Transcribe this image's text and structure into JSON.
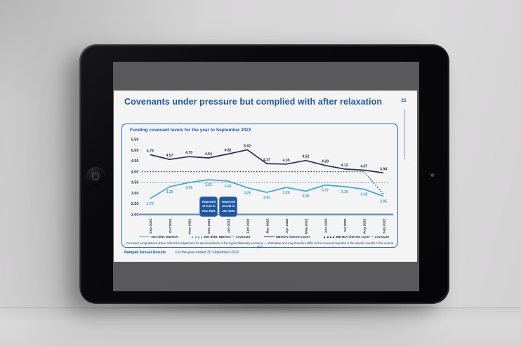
{
  "slide": {
    "title": "Covenants under pressure but complied with after relaxation",
    "page_number": "25",
    "footer": {
      "brand": "Nampak Annual Results",
      "period": "For the year ended 30 September 2022"
    }
  },
  "chart": {
    "title": "Funding covenant levels for the year to September 2022",
    "footnote": "Covenant computations above reflect the adjustment for spot translation of the hyperinflationary economy — Zimbabwe and may therefore differ to the covenant reported in the specific months of the current year"
  },
  "chart_data": {
    "type": "line",
    "title": "Funding covenant levels for the year to September 2022",
    "categories": [
      "Sep 2021",
      "Oct 2021",
      "Nov 2021",
      "Dec 2021",
      "Jan 2022",
      "Feb 2022",
      "Mar 2022",
      "Apr 2022",
      "May 2022",
      "Jun 2022",
      "Jul 2022",
      "Aug 2022",
      "Sep 2022"
    ],
    "ylim": [
      2.0,
      5.5
    ],
    "yticks": [
      5.5,
      5.0,
      4.5,
      4.0,
      3.5,
      3.0,
      2.5,
      2.0
    ],
    "grid": false,
    "legend_position": "bottom",
    "colors": {
      "accent_blue": "#1c58a8",
      "navy": "#242e54",
      "light_blue": "#3da4d8",
      "axis": "#5f87b2"
    },
    "series": [
      {
        "name": "Net debt: EBITDA",
        "style": "solid",
        "color": "#3da4d8",
        "label_side": "below",
        "show_labels": true,
        "values": [
          2.74,
          3.29,
          3.49,
          3.62,
          3.56,
          3.25,
          3.03,
          3.26,
          3.09,
          3.37,
          3.3,
          3.18,
          2.85
        ]
      },
      {
        "name": "Net debt: EBITDA — covenant",
        "style": "dotted",
        "color": "#4fa9d9",
        "show_labels": false,
        "values": [
          3.5,
          3.5,
          3.5,
          3.5,
          3.5,
          3.5,
          3.5,
          3.5,
          3.5,
          3.5,
          3.5,
          3.5,
          3.5
        ]
      },
      {
        "name": "EBITDA interest cover",
        "style": "solid",
        "color": "#242e54",
        "label_side": "above",
        "show_labels": true,
        "values": [
          4.79,
          4.57,
          4.7,
          4.64,
          4.82,
          5.02,
          4.37,
          4.35,
          4.52,
          4.29,
          4.12,
          4.07,
          3.94
        ]
      },
      {
        "name": "EBITDA interest cover — covenant",
        "style": "dotted",
        "color": "#242e54",
        "show_labels": false,
        "values": [
          4.0,
          4.0,
          4.0,
          4.0,
          4.0,
          4.0,
          4.0,
          4.0,
          4.0,
          4.0,
          4.0,
          4.0,
          2.95
        ]
      }
    ],
    "annotations": [
      {
        "anchor_index": 3,
        "lines": [
          "Reported",
          "at 3.34 in",
          "Dec 2021"
        ]
      },
      {
        "anchor_index": 4,
        "lines": [
          "Reported",
          "at 3.32 in",
          "Jan 2022"
        ]
      }
    ]
  }
}
